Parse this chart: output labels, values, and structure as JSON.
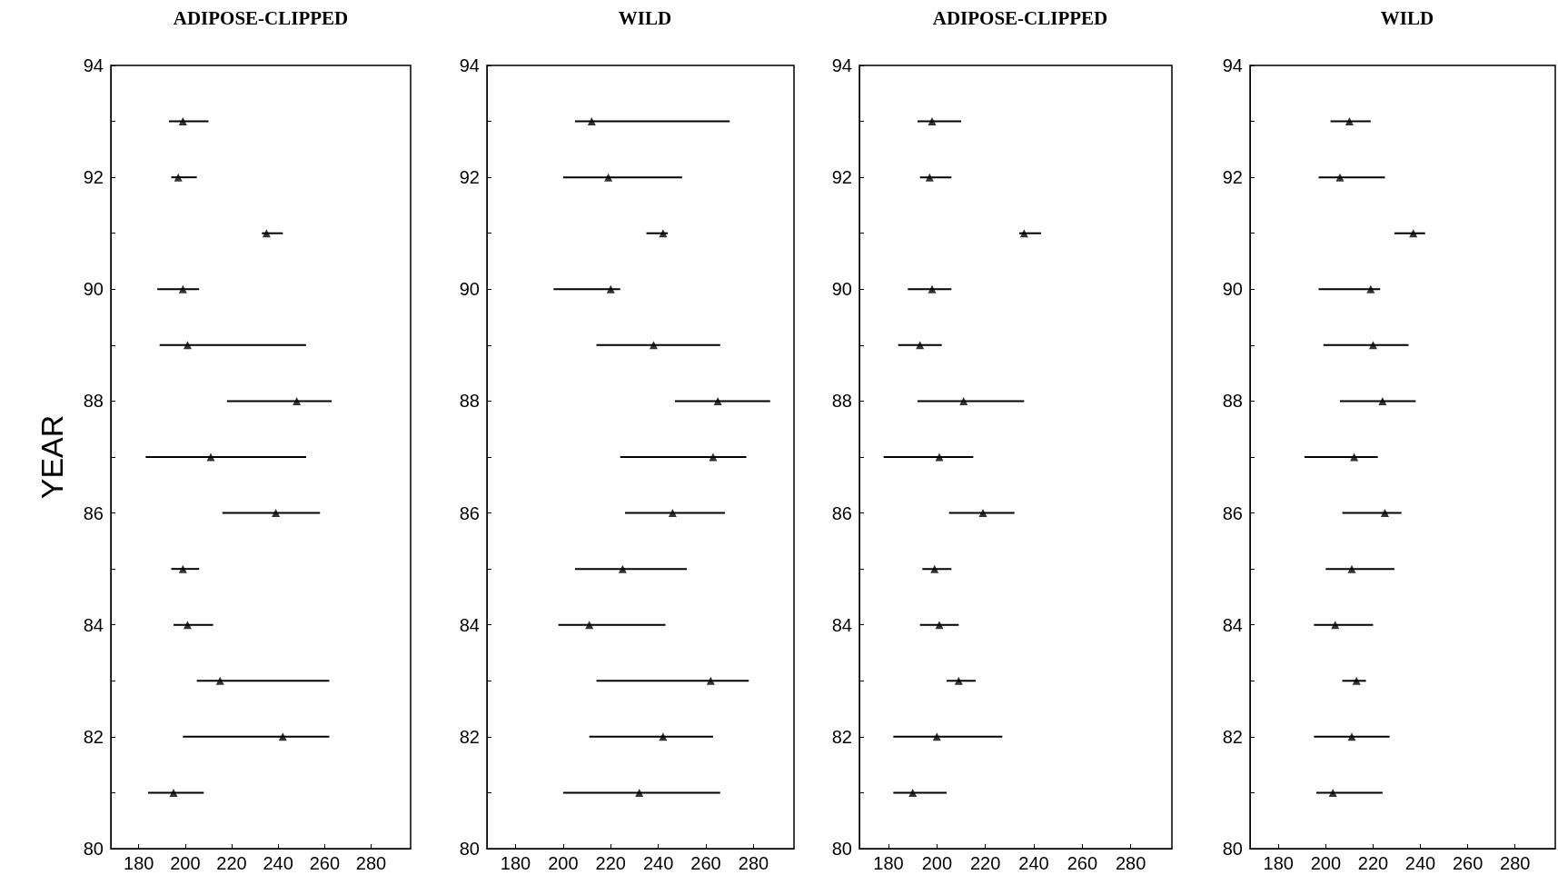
{
  "chart_data": [
    {
      "type": "scatter",
      "title": "ADIPOSE-CLIPPED",
      "ylabel": "YEAR",
      "marker": "triangle",
      "grid": false,
      "xlim": [
        168,
        297
      ],
      "xticks": [
        180,
        200,
        220,
        240,
        260,
        280
      ],
      "ylim": [
        80,
        94
      ],
      "yticks": [
        80,
        {
          "value": 81,
          "label": null
        },
        82,
        {
          "value": 83,
          "label": null
        },
        84,
        {
          "value": 85,
          "label": null
        },
        86,
        {
          "value": 87,
          "label": null
        },
        88,
        {
          "value": 89,
          "label": null
        },
        90,
        {
          "value": 91,
          "label": null
        },
        92,
        {
          "value": 93,
          "label": null
        },
        94
      ],
      "series": [
        {
          "color": "#000000",
          "x": [
            199,
            197,
            235,
            199,
            201,
            248,
            211,
            239,
            199,
            201,
            215,
            242,
            195
          ],
          "values": [
            93,
            92,
            91,
            90,
            89,
            88,
            87,
            86,
            85,
            84,
            83,
            82,
            81
          ],
          "xerrors": [
            [
              193,
              210
            ],
            [
              194,
              205
            ],
            [
              233,
              242
            ],
            [
              188,
              206
            ],
            [
              189,
              252
            ],
            [
              218,
              263
            ],
            [
              183,
              252
            ],
            [
              216,
              258
            ],
            [
              194,
              206
            ],
            [
              195,
              212
            ],
            [
              205,
              262
            ],
            [
              199,
              262
            ],
            [
              184,
              208
            ]
          ]
        }
      ]
    },
    {
      "type": "scatter",
      "title": "WILD",
      "marker": "triangle",
      "grid": false,
      "xlim": [
        168,
        297
      ],
      "xticks": [
        180,
        200,
        220,
        240,
        260,
        280
      ],
      "ylim": [
        80,
        94
      ],
      "yticks": [
        80,
        {
          "value": 81,
          "label": null
        },
        82,
        {
          "value": 83,
          "label": null
        },
        84,
        {
          "value": 85,
          "label": null
        },
        86,
        {
          "value": 87,
          "label": null
        },
        88,
        {
          "value": 89,
          "label": null
        },
        90,
        {
          "value": 91,
          "label": null
        },
        92,
        {
          "value": 93,
          "label": null
        },
        94
      ],
      "series": [
        {
          "color": "#000000",
          "x": [
            212,
            219,
            242,
            220,
            238,
            265,
            263,
            246,
            225,
            211,
            262,
            242,
            232
          ],
          "values": [
            93,
            92,
            91,
            90,
            89,
            88,
            87,
            86,
            85,
            84,
            83,
            82,
            81
          ],
          "xerrors": [
            [
              205,
              270
            ],
            [
              200,
              250
            ],
            [
              235,
              244
            ],
            [
              196,
              224
            ],
            [
              214,
              266
            ],
            [
              247,
              287
            ],
            [
              224,
              277
            ],
            [
              226,
              268
            ],
            [
              205,
              252
            ],
            [
              198,
              243
            ],
            [
              214,
              278
            ],
            [
              211,
              263
            ],
            [
              200,
              266
            ]
          ]
        }
      ]
    },
    {
      "type": "scatter",
      "title": "ADIPOSE-CLIPPED",
      "marker": "triangle",
      "grid": false,
      "xlim": [
        168,
        297
      ],
      "xticks": [
        180,
        200,
        220,
        240,
        260,
        280
      ],
      "ylim": [
        80,
        94
      ],
      "yticks": [
        80,
        {
          "value": 81,
          "label": null
        },
        82,
        {
          "value": 83,
          "label": null
        },
        84,
        {
          "value": 85,
          "label": null
        },
        86,
        {
          "value": 87,
          "label": null
        },
        88,
        {
          "value": 89,
          "label": null
        },
        90,
        {
          "value": 91,
          "label": null
        },
        92,
        {
          "value": 93,
          "label": null
        },
        94
      ],
      "series": [
        {
          "color": "#000000",
          "x": [
            198,
            197,
            236,
            198,
            193,
            211,
            201,
            219,
            199,
            201,
            209,
            200,
            190
          ],
          "values": [
            93,
            92,
            91,
            90,
            89,
            88,
            87,
            86,
            85,
            84,
            83,
            82,
            81
          ],
          "xerrors": [
            [
              192,
              210
            ],
            [
              193,
              206
            ],
            [
              234,
              243
            ],
            [
              188,
              206
            ],
            [
              184,
              202
            ],
            [
              192,
              236
            ],
            [
              178,
              215
            ],
            [
              205,
              232
            ],
            [
              194,
              206
            ],
            [
              193,
              209
            ],
            [
              204,
              216
            ],
            [
              182,
              227
            ],
            [
              182,
              204
            ]
          ]
        }
      ]
    },
    {
      "type": "scatter",
      "title": "WILD",
      "marker": "triangle",
      "grid": false,
      "xlim": [
        168,
        297
      ],
      "xticks": [
        180,
        200,
        220,
        240,
        260,
        280
      ],
      "ylim": [
        80,
        94
      ],
      "yticks": [
        80,
        {
          "value": 81,
          "label": null
        },
        82,
        {
          "value": 83,
          "label": null
        },
        84,
        {
          "value": 85,
          "label": null
        },
        86,
        {
          "value": 87,
          "label": null
        },
        88,
        {
          "value": 89,
          "label": null
        },
        90,
        {
          "value": 91,
          "label": null
        },
        92,
        {
          "value": 93,
          "label": null
        },
        94
      ],
      "series": [
        {
          "color": "#000000",
          "x": [
            210,
            206,
            237,
            219,
            220,
            224,
            212,
            225,
            211,
            204,
            213,
            211,
            203
          ],
          "values": [
            93,
            92,
            91,
            90,
            89,
            88,
            87,
            86,
            85,
            84,
            83,
            82,
            81
          ],
          "xerrors": [
            [
              202,
              219
            ],
            [
              197,
              225
            ],
            [
              229,
              242
            ],
            [
              197,
              223
            ],
            [
              199,
              235
            ],
            [
              206,
              238
            ],
            [
              191,
              222
            ],
            [
              207,
              232
            ],
            [
              200,
              229
            ],
            [
              195,
              220
            ],
            [
              207,
              217
            ],
            [
              195,
              227
            ],
            [
              196,
              224
            ]
          ]
        }
      ]
    }
  ]
}
